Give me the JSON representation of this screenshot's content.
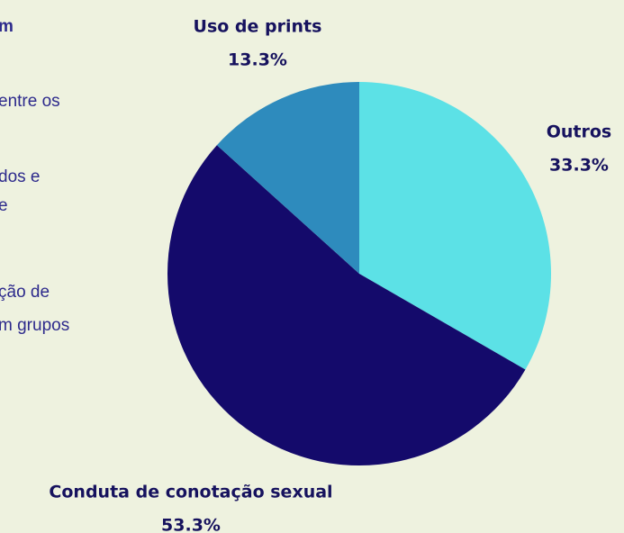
{
  "chart_data": {
    "type": "pie",
    "categories": [
      "Outros",
      "Conduta de conotação sexual",
      "Uso de prints"
    ],
    "values": [
      33.3,
      53.3,
      13.3
    ],
    "value_labels": [
      "33.3%",
      "53.3%",
      "13.3%"
    ],
    "colors": [
      "#5ce1e6",
      "#140a6b",
      "#2e8bbd"
    ]
  },
  "side_text": [
    {
      "text": "m",
      "bold": true
    },
    {
      "text": "entre os",
      "bold": false
    },
    {
      "text": "dos e",
      "bold": false
    },
    {
      "text": "e",
      "bold": false
    },
    {
      "text": "ção de",
      "bold": false
    },
    {
      "text": "m grupos",
      "bold": false
    }
  ]
}
